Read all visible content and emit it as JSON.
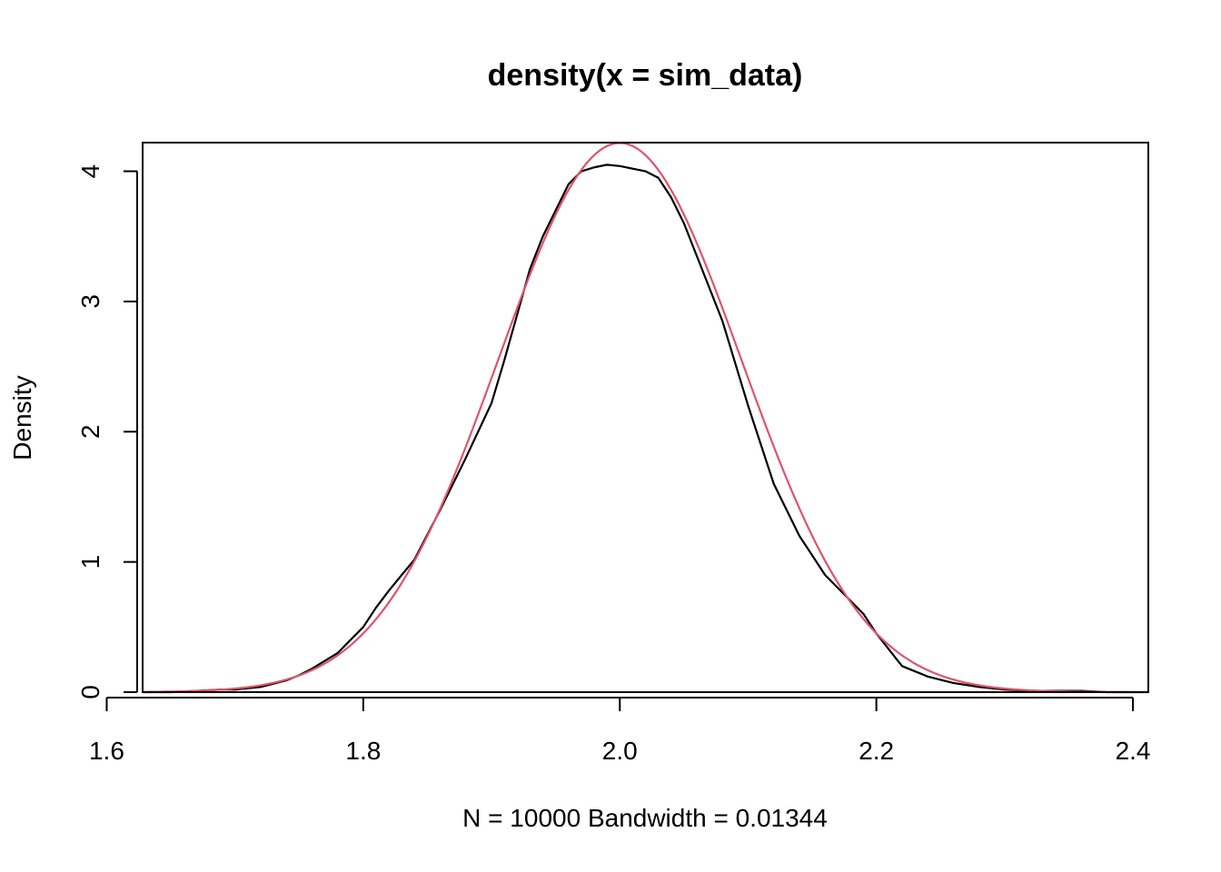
{
  "chart_data": {
    "type": "line",
    "title": "density(x = sim_data)",
    "xlabel": "N = 10000   Bandwidth = 0.01344",
    "ylabel": "Density",
    "xlim": [
      1.628,
      2.412
    ],
    "ylim": [
      0,
      4.22
    ],
    "xticks": [
      1.6,
      1.8,
      2.0,
      2.2,
      2.4
    ],
    "xtick_labels": [
      "1.6",
      "1.8",
      "2.0",
      "2.2",
      "2.4"
    ],
    "yticks": [
      0,
      1,
      2,
      3,
      4
    ],
    "ytick_labels": [
      "0",
      "1",
      "2",
      "3",
      "4"
    ],
    "grid": false,
    "legend": "none",
    "series": [
      {
        "color": "#000000",
        "x": [
          1.628,
          1.65,
          1.67,
          1.69,
          1.7,
          1.72,
          1.74,
          1.75,
          1.76,
          1.78,
          1.8,
          1.81,
          1.82,
          1.84,
          1.86,
          1.88,
          1.9,
          1.91,
          1.92,
          1.93,
          1.94,
          1.96,
          1.97,
          1.98,
          1.99,
          2.0,
          2.01,
          2.02,
          2.03,
          2.04,
          2.05,
          2.06,
          2.08,
          2.1,
          2.12,
          2.14,
          2.16,
          2.18,
          2.19,
          2.2,
          2.22,
          2.24,
          2.26,
          2.28,
          2.3,
          2.32,
          2.34,
          2.36,
          2.38,
          2.4,
          2.412
        ],
        "y": [
          0.0,
          0.0,
          0.01,
          0.02,
          0.02,
          0.04,
          0.09,
          0.13,
          0.18,
          0.3,
          0.5,
          0.65,
          0.78,
          1.02,
          1.4,
          1.8,
          2.22,
          2.55,
          2.9,
          3.25,
          3.5,
          3.9,
          4.0,
          4.03,
          4.05,
          4.04,
          4.02,
          4.0,
          3.95,
          3.8,
          3.6,
          3.35,
          2.85,
          2.2,
          1.6,
          1.2,
          0.9,
          0.7,
          0.6,
          0.45,
          0.2,
          0.12,
          0.07,
          0.04,
          0.02,
          0.01,
          0.01,
          0.01,
          0.0,
          0.0,
          0.0
        ]
      },
      {
        "color": "#DF536B",
        "mean": 2.0,
        "sd": 0.0946,
        "x_range": [
          1.628,
          2.412
        ]
      }
    ]
  }
}
